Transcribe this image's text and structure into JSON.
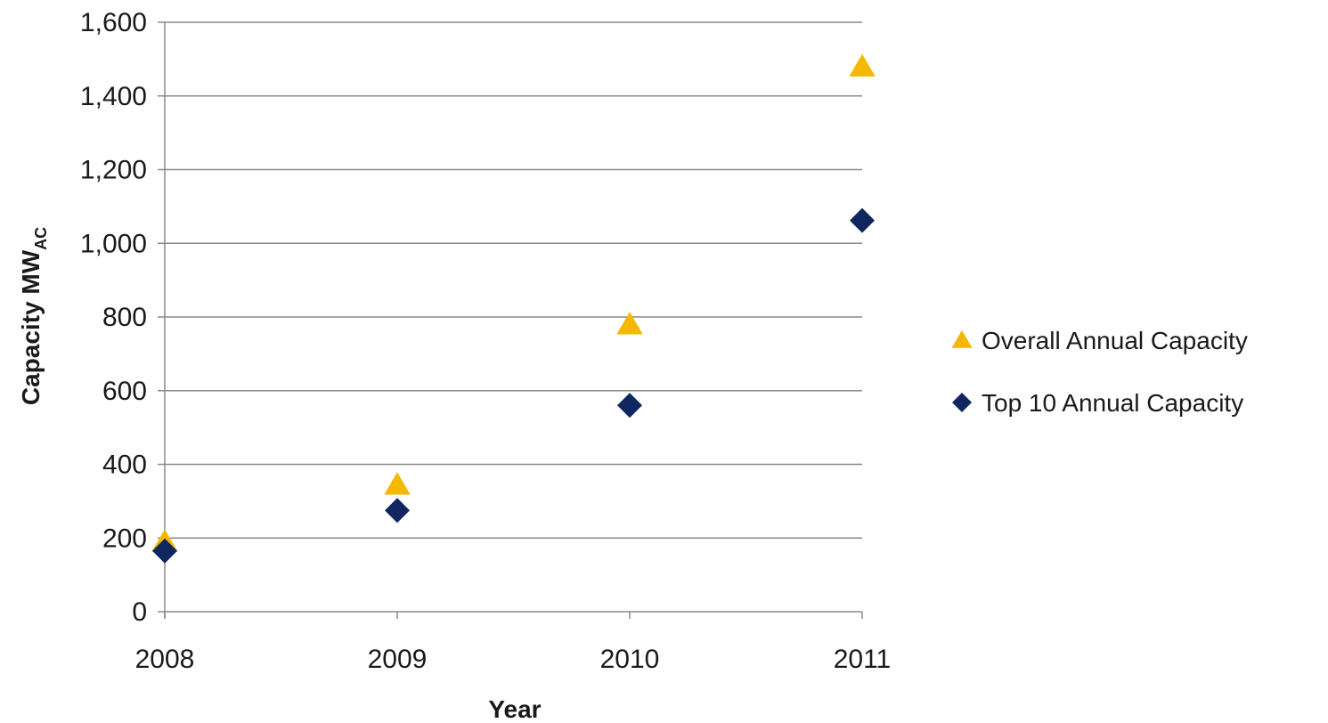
{
  "chart_data": {
    "type": "scatter",
    "title": "",
    "xlabel": "Year",
    "ylabel_main": "Capacity MW",
    "ylabel_sub": "AC",
    "x": [
      2008,
      2009,
      2010,
      2011
    ],
    "x_tick_labels": [
      "2008",
      "2009",
      "2010",
      "2011"
    ],
    "ylim": [
      0,
      1600
    ],
    "y_tick_values": [
      0,
      200,
      400,
      600,
      800,
      1000,
      1200,
      1400,
      1600
    ],
    "y_tick_labels": [
      "0",
      "200",
      "400",
      "600",
      "800",
      "1,000",
      "1,200",
      "1,400",
      "1,600"
    ],
    "grid": true,
    "legend_position": "right",
    "series": [
      {
        "name": "Overall Annual Capacity",
        "marker": "triangle",
        "color": "#F5B800",
        "values": [
          190,
          345,
          780,
          1480
        ]
      },
      {
        "name": "Top 10 Annual Capacity",
        "marker": "diamond",
        "color": "#0F2660",
        "values": [
          165,
          275,
          560,
          1062
        ]
      }
    ]
  }
}
